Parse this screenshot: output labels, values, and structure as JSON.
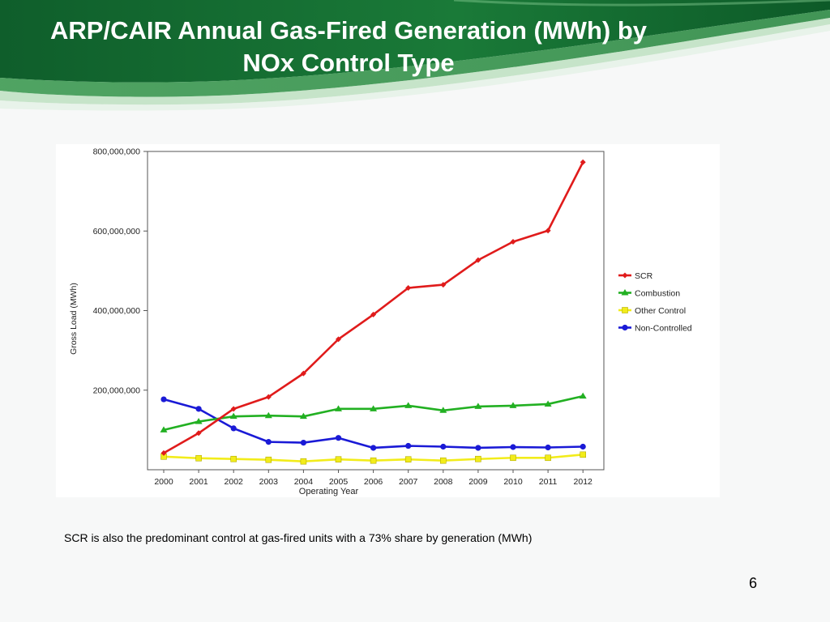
{
  "slide": {
    "title_line1": "ARP/CAIR Annual Gas-Fired Generation (MWh) by",
    "title_line2": "NOx Control Type",
    "caption": "SCR is also the predominant control  at gas-fired units with a 73% share by generation (MWh)",
    "page_number": "6"
  },
  "colors": {
    "banner_dark": "#0f5e2b",
    "banner_light": "#3d9a52",
    "banner_highlight": "#9fd3a3"
  },
  "chart_data": {
    "type": "line",
    "title": "",
    "xlabel": "Operating Year",
    "ylabel": "Gross Load (MWh)",
    "x": [
      "2000",
      "2001",
      "2002",
      "2003",
      "2004",
      "2005",
      "2006",
      "2007",
      "2008",
      "2009",
      "2010",
      "2011",
      "2012"
    ],
    "ylim": [
      0,
      800000000
    ],
    "yticks": [
      200000000,
      400000000,
      600000000,
      800000000
    ],
    "ytick_labels": [
      "200,000,000",
      "400,000,000",
      "600,000,000",
      "800,000,000"
    ],
    "grid": false,
    "legend_position": "right",
    "series": [
      {
        "name": "SCR",
        "color": "#e01b1b",
        "marker": "diamond",
        "values": [
          42000000,
          92000000,
          153000000,
          183000000,
          242000000,
          328000000,
          390000000,
          457000000,
          465000000,
          527000000,
          573000000,
          601000000,
          773000000
        ]
      },
      {
        "name": "Combustion",
        "color": "#22b022",
        "marker": "triangle",
        "values": [
          100000000,
          121000000,
          134000000,
          136000000,
          134000000,
          153000000,
          153000000,
          161000000,
          149000000,
          159000000,
          161000000,
          165000000,
          185000000
        ]
      },
      {
        "name": "Other Control",
        "color": "#f2ec1a",
        "marker": "square",
        "values": [
          33000000,
          29000000,
          27000000,
          25000000,
          21000000,
          26000000,
          23000000,
          26000000,
          23000000,
          27000000,
          30000000,
          30000000,
          38000000
        ]
      },
      {
        "name": "Non-Controlled",
        "color": "#1a1ad6",
        "marker": "circle",
        "values": [
          177000000,
          153000000,
          104000000,
          70000000,
          68000000,
          80000000,
          55000000,
          60000000,
          58000000,
          55000000,
          57000000,
          56000000,
          58000000
        ]
      }
    ]
  }
}
